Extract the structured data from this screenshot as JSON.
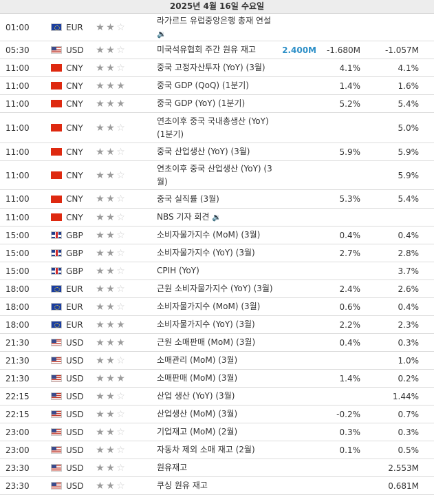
{
  "date_header": "2025년 4월 16일 수요일",
  "colors": {
    "actual_highlight": "#2d8fc7"
  },
  "icons": {
    "speaker": "speaker-icon"
  },
  "rows": [
    {
      "time": "01:00",
      "flag": "eu",
      "currency": "EUR",
      "stars": 2,
      "event": "라가르드 유럽중앙은행 총재 연설",
      "speech_below": true,
      "actual": "",
      "forecast": "",
      "previous": "",
      "h": 40
    },
    {
      "time": "05:30",
      "flag": "us",
      "currency": "USD",
      "stars": 2,
      "event": "미국석유협회 주간 원유 재고",
      "actual": "2.400M",
      "actual_highlight": true,
      "forecast": "-1.680M",
      "previous": "-1.057M",
      "h": 26
    },
    {
      "time": "11:00",
      "flag": "cn",
      "currency": "CNY",
      "stars": 2,
      "event": "중국 고정자산투자 (YoY) (3월)",
      "actual": "",
      "forecast": "4.1%",
      "previous": "4.1%",
      "h": 26
    },
    {
      "time": "11:00",
      "flag": "cn",
      "currency": "CNY",
      "stars": 3,
      "event": "중국 GDP (QoQ) (1분기)",
      "actual": "",
      "forecast": "1.4%",
      "previous": "1.6%",
      "h": 26
    },
    {
      "time": "11:00",
      "flag": "cn",
      "currency": "CNY",
      "stars": 3,
      "event": "중국 GDP (YoY) (1분기)",
      "actual": "",
      "forecast": "5.2%",
      "previous": "5.4%",
      "h": 26
    },
    {
      "time": "11:00",
      "flag": "cn",
      "currency": "CNY",
      "stars": 2,
      "event": "연초이후 중국 국내총생산 (YoY) (1분기)",
      "actual": "",
      "forecast": "",
      "previous": "5.0%",
      "h": 44
    },
    {
      "time": "11:00",
      "flag": "cn",
      "currency": "CNY",
      "stars": 2,
      "event": "중국 산업생산 (YoY) (3월)",
      "actual": "",
      "forecast": "5.9%",
      "previous": "5.9%",
      "h": 26
    },
    {
      "time": "11:00",
      "flag": "cn",
      "currency": "CNY",
      "stars": 2,
      "event": "연초이후 중국 산업생산 (YoY) (3월)",
      "actual": "",
      "forecast": "",
      "previous": "5.9%",
      "h": 42
    },
    {
      "time": "11:00",
      "flag": "cn",
      "currency": "CNY",
      "stars": 2,
      "event": "중국 실직률 (3월)",
      "actual": "",
      "forecast": "5.3%",
      "previous": "5.4%",
      "h": 27
    },
    {
      "time": "11:00",
      "flag": "cn",
      "currency": "CNY",
      "stars": 2,
      "event": "NBS 기자 회견",
      "speech_inline": true,
      "actual": "",
      "forecast": "",
      "previous": "",
      "h": 26
    },
    {
      "time": "15:00",
      "flag": "gb",
      "currency": "GBP",
      "stars": 2,
      "event": "소비자물가지수 (MoM) (3월)",
      "actual": "",
      "forecast": "0.4%",
      "previous": "0.4%",
      "h": 26
    },
    {
      "time": "15:00",
      "flag": "gb",
      "currency": "GBP",
      "stars": 2,
      "event": "소비자물가지수 (YoY) (3월)",
      "actual": "",
      "forecast": "2.7%",
      "previous": "2.8%",
      "h": 26
    },
    {
      "time": "15:00",
      "flag": "gb",
      "currency": "GBP",
      "stars": 2,
      "event": "CPIH (YoY)",
      "actual": "",
      "forecast": "",
      "previous": "3.7%",
      "h": 26
    },
    {
      "time": "18:00",
      "flag": "eu",
      "currency": "EUR",
      "stars": 2,
      "event": "근원 소비자물가지수 (YoY) (3월)",
      "actual": "",
      "forecast": "2.4%",
      "previous": "2.6%",
      "h": 26
    },
    {
      "time": "18:00",
      "flag": "eu",
      "currency": "EUR",
      "stars": 2,
      "event": "소비자물가지수 (MoM) (3월)",
      "actual": "",
      "forecast": "0.6%",
      "previous": "0.4%",
      "h": 26
    },
    {
      "time": "18:00",
      "flag": "eu",
      "currency": "EUR",
      "stars": 3,
      "event": "소비자물가지수 (YoY) (3월)",
      "actual": "",
      "forecast": "2.2%",
      "previous": "2.3%",
      "h": 26
    },
    {
      "time": "21:30",
      "flag": "us",
      "currency": "USD",
      "stars": 3,
      "event": "근원 소매판매 (MoM) (3월)",
      "actual": "",
      "forecast": "0.4%",
      "previous": "0.3%",
      "h": 26
    },
    {
      "time": "21:30",
      "flag": "us",
      "currency": "USD",
      "stars": 2,
      "event": "소매관리 (MoM) (3월)",
      "actual": "",
      "forecast": "",
      "previous": "1.0%",
      "h": 26
    },
    {
      "time": "21:30",
      "flag": "us",
      "currency": "USD",
      "stars": 3,
      "event": "소매판매 (MoM) (3월)",
      "actual": "",
      "forecast": "1.4%",
      "previous": "0.2%",
      "h": 26
    },
    {
      "time": "22:15",
      "flag": "us",
      "currency": "USD",
      "stars": 2,
      "event": "산업 생산 (YoY) (3월)",
      "actual": "",
      "forecast": "",
      "previous": "1.44%",
      "h": 26
    },
    {
      "time": "22:15",
      "flag": "us",
      "currency": "USD",
      "stars": 2,
      "event": "산업생산 (MoM) (3월)",
      "actual": "",
      "forecast": "-0.2%",
      "previous": "0.7%",
      "h": 26
    },
    {
      "time": "23:00",
      "flag": "us",
      "currency": "USD",
      "stars": 2,
      "event": "기업재고 (MoM) (2월)",
      "actual": "",
      "forecast": "0.3%",
      "previous": "0.3%",
      "h": 26
    },
    {
      "time": "23:00",
      "flag": "us",
      "currency": "USD",
      "stars": 2,
      "event": "자동차 제외 소매 재고 (2월)",
      "actual": "",
      "forecast": "0.1%",
      "previous": "0.5%",
      "h": 26
    },
    {
      "time": "23:30",
      "flag": "us",
      "currency": "USD",
      "stars": 2,
      "event": "원유재고",
      "actual": "",
      "forecast": "",
      "previous": "2.553M",
      "h": 26
    },
    {
      "time": "23:30",
      "flag": "us",
      "currency": "USD",
      "stars": 2,
      "event": "쿠싱 원유 재고",
      "actual": "",
      "forecast": "",
      "previous": "0.681M",
      "h": 26
    }
  ]
}
